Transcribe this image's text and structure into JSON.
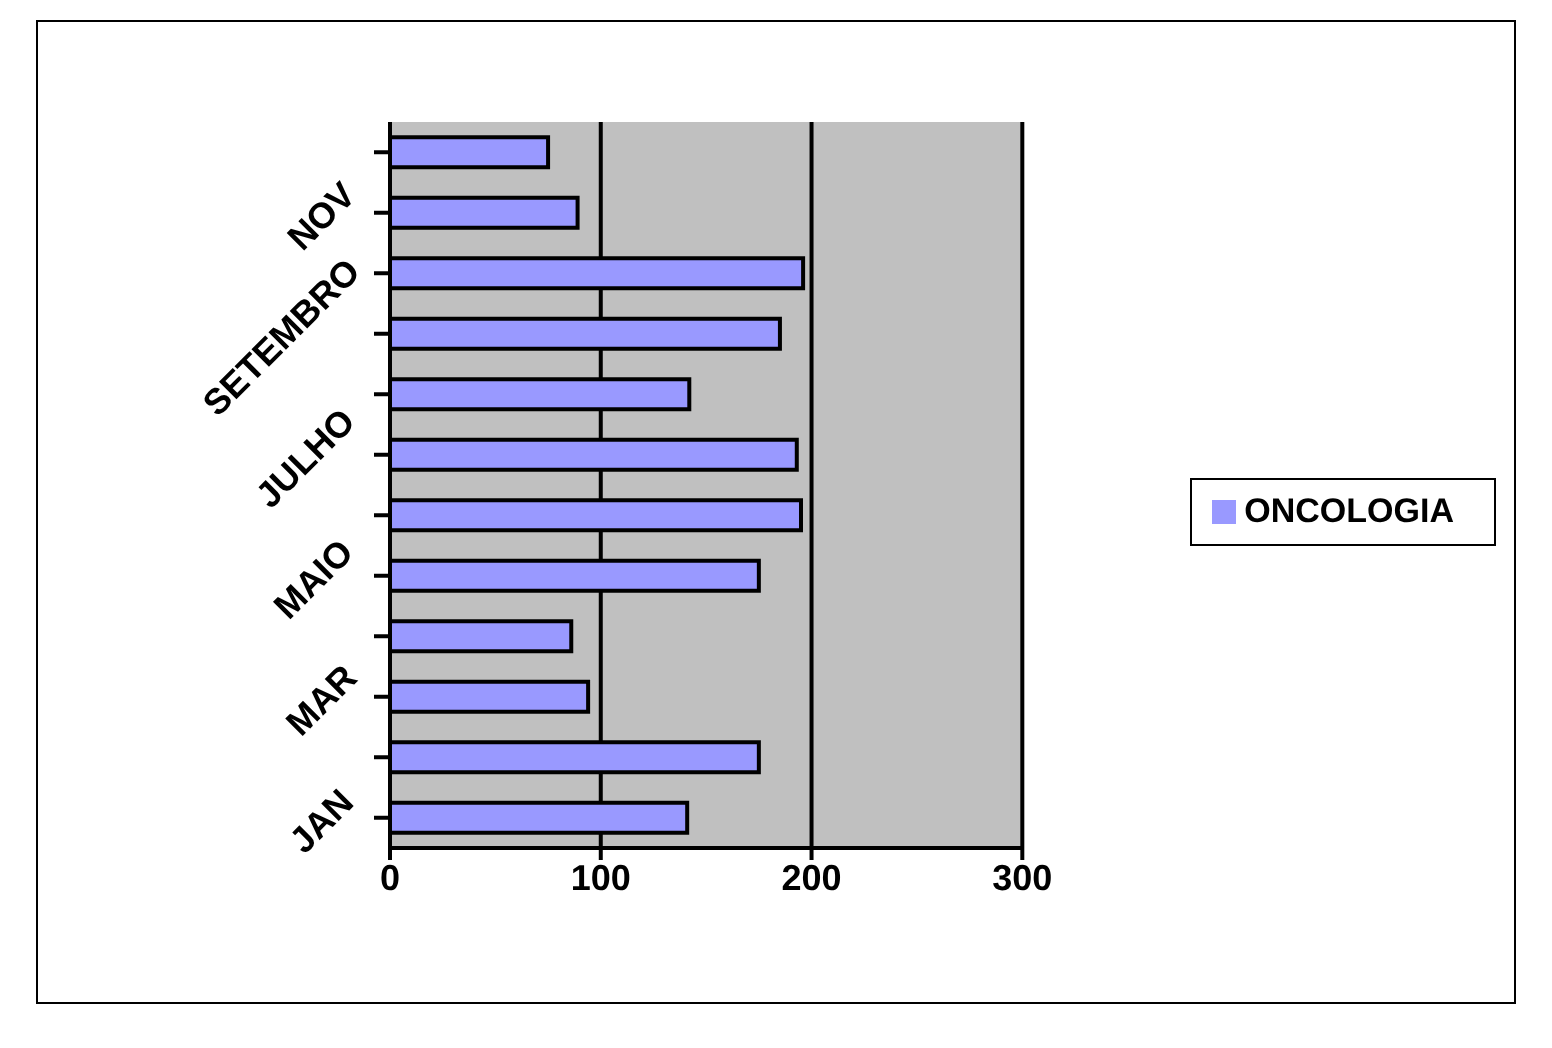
{
  "chart_data": {
    "type": "bar",
    "orientation": "horizontal",
    "categories": [
      null,
      "NOV",
      null,
      "SETEMBRO",
      null,
      "JULHO",
      null,
      "MAIO",
      null,
      "MAR",
      null,
      "JAN"
    ],
    "series": [
      {
        "name": "ONCOLOGIA",
        "color": "#9999ff",
        "values": [
          75,
          89,
          196,
          185,
          142,
          193,
          195,
          175,
          86,
          94,
          175,
          141
        ]
      }
    ],
    "xlim": [
      0,
      300
    ],
    "xticks": [
      0,
      100,
      200,
      300
    ],
    "grid": "x",
    "legend": "right"
  }
}
